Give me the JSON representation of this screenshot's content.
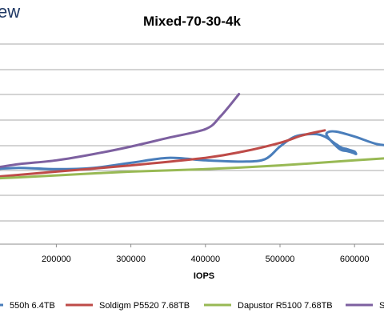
{
  "brand": {
    "text": "ew"
  },
  "chart_data": {
    "type": "line",
    "title": "Mixed-70-30-4k",
    "xlabel": "IOPS",
    "ylabel": "",
    "xlim": [
      0,
      650000
    ],
    "x_ticks": [
      200000,
      300000,
      400000,
      500000,
      600000
    ],
    "grid": "horizontal",
    "legend_position": "bottom",
    "series": [
      {
        "name": "550h 6.4TB",
        "color": "#4a7ebb",
        "points": [
          [
            0,
            3.15
          ],
          [
            40000,
            3.2
          ],
          [
            100000,
            3.0
          ],
          [
            150000,
            3.05
          ],
          [
            200000,
            3.0
          ],
          [
            250000,
            3.05
          ],
          [
            300000,
            3.25
          ],
          [
            350000,
            3.45
          ],
          [
            400000,
            3.35
          ],
          [
            450000,
            3.3
          ],
          [
            480000,
            3.4
          ],
          [
            500000,
            3.9
          ],
          [
            520000,
            4.3
          ],
          [
            545000,
            4.4
          ],
          [
            560000,
            4.3
          ],
          [
            575000,
            4.0
          ],
          [
            583000,
            3.85
          ],
          [
            590000,
            3.8
          ],
          [
            595000,
            3.75
          ],
          [
            600000,
            3.7
          ],
          [
            602000,
            3.6
          ],
          [
            598000,
            3.65
          ],
          [
            590000,
            3.72
          ],
          [
            580000,
            3.8
          ],
          [
            565000,
            4.25
          ],
          [
            563000,
            4.45
          ],
          [
            575000,
            4.5
          ],
          [
            600000,
            4.3
          ],
          [
            630000,
            4.0
          ],
          [
            650000,
            3.95
          ]
        ]
      },
      {
        "name": "Soldigm P5520 7.68TB",
        "color": "#be4b48",
        "points": [
          [
            0,
            2.45
          ],
          [
            100000,
            2.65
          ],
          [
            200000,
            2.9
          ],
          [
            300000,
            3.15
          ],
          [
            400000,
            3.45
          ],
          [
            450000,
            3.7
          ],
          [
            500000,
            4.05
          ],
          [
            530000,
            4.35
          ],
          [
            560000,
            4.55
          ]
        ]
      },
      {
        "name": "Dapustor R5100 7.68TB",
        "color": "#98b954",
        "points": [
          [
            0,
            2.5
          ],
          [
            100000,
            2.6
          ],
          [
            200000,
            2.75
          ],
          [
            300000,
            2.9
          ],
          [
            400000,
            3.0
          ],
          [
            500000,
            3.15
          ],
          [
            600000,
            3.35
          ],
          [
            650000,
            3.45
          ]
        ]
      },
      {
        "name": "Sa",
        "color": "#7d60a0",
        "points": [
          [
            0,
            2.8
          ],
          [
            100000,
            3.0
          ],
          [
            150000,
            3.2
          ],
          [
            200000,
            3.35
          ],
          [
            250000,
            3.6
          ],
          [
            300000,
            3.9
          ],
          [
            350000,
            4.25
          ],
          [
            400000,
            4.6
          ],
          [
            420000,
            5.1
          ],
          [
            445000,
            6.0
          ]
        ]
      }
    ]
  }
}
